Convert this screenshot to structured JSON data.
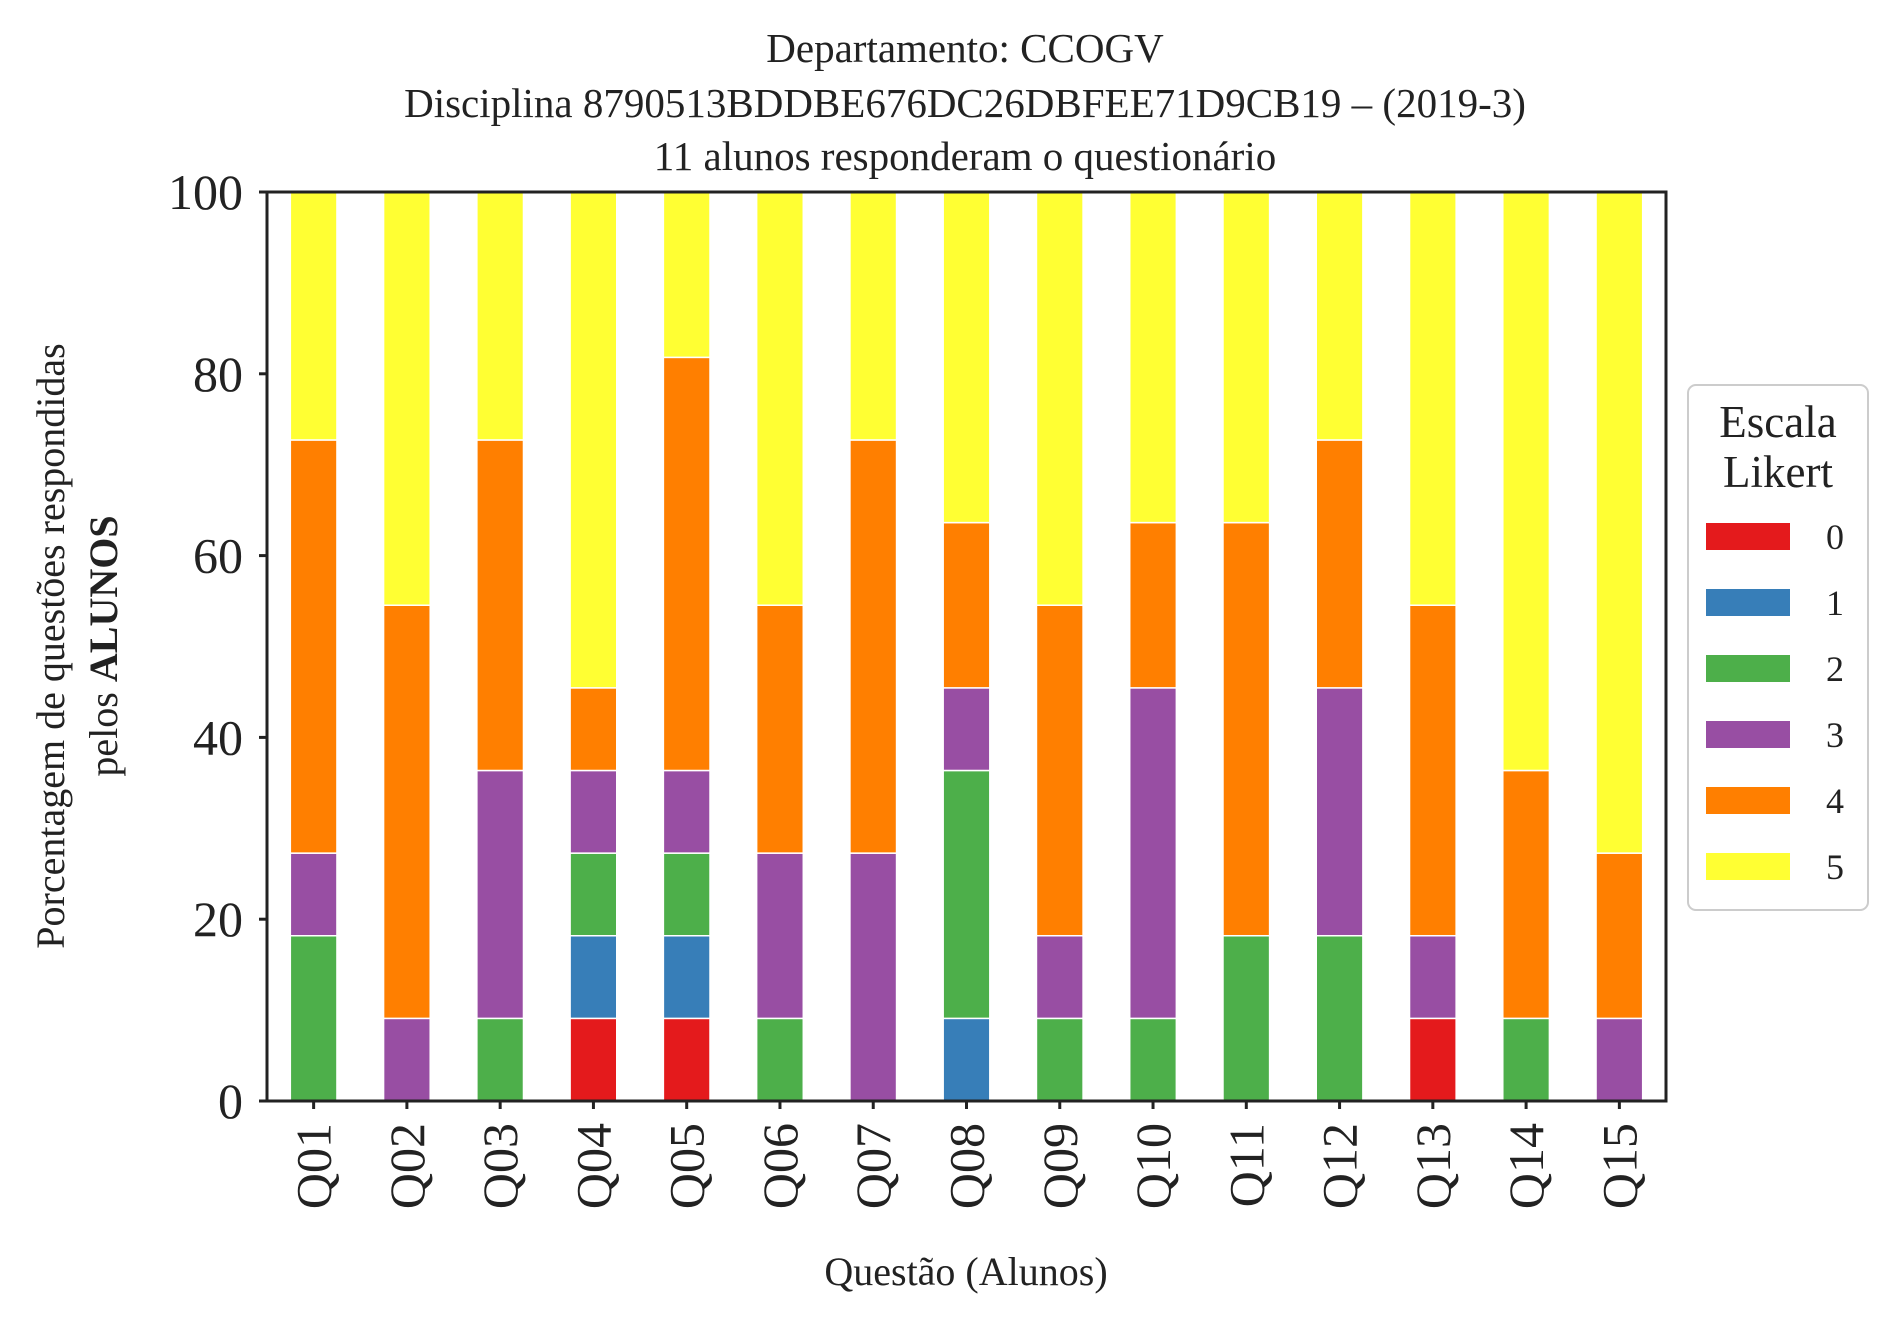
{
  "chart_data": {
    "type": "bar",
    "stacked": true,
    "title_lines": [
      "Departamento: CCOGV",
      "Disciplina 8790513BDDBE676DC26DBFEE71D9CB19 – (2019-3)",
      "11 alunos responderam o questionário"
    ],
    "xlabel": "Questão (Alunos)",
    "ylabel_line1": "Porcentagem de questões respondidas",
    "ylabel_line2_prefix": "pelos ",
    "ylabel_line2_bold": "ALUNOS",
    "ylim": [
      0,
      100
    ],
    "yticks": [
      "0",
      "20",
      "40",
      "60",
      "80",
      "100"
    ],
    "grid": false,
    "legend_position": "right",
    "legend_title_lines": [
      "Escala",
      "Likert"
    ],
    "categories": [
      "Q01",
      "Q02",
      "Q03",
      "Q04",
      "Q05",
      "Q06",
      "Q07",
      "Q08",
      "Q09",
      "Q10",
      "Q11",
      "Q12",
      "Q13",
      "Q14",
      "Q15"
    ],
    "series": [
      {
        "name": "0",
        "color": "#e41a1c",
        "values": [
          0,
          0,
          0,
          9.09,
          9.09,
          0,
          0,
          0,
          0,
          0,
          0,
          0,
          9.09,
          0,
          0
        ]
      },
      {
        "name": "1",
        "color": "#377eb8",
        "values": [
          0,
          0,
          0,
          9.09,
          9.09,
          0,
          0,
          9.09,
          0,
          0,
          0,
          0,
          0,
          0,
          0
        ]
      },
      {
        "name": "2",
        "color": "#4daf4a",
        "values": [
          18.18,
          0,
          9.09,
          9.09,
          9.09,
          9.09,
          0,
          27.27,
          9.09,
          9.09,
          18.18,
          18.18,
          0,
          9.09,
          0
        ]
      },
      {
        "name": "3",
        "color": "#984ea3",
        "values": [
          9.09,
          9.09,
          27.27,
          9.09,
          9.09,
          18.18,
          27.27,
          9.09,
          9.09,
          36.36,
          0,
          27.27,
          9.09,
          0,
          9.09
        ]
      },
      {
        "name": "4",
        "color": "#ff7f00",
        "values": [
          45.45,
          45.45,
          36.36,
          9.09,
          45.45,
          27.27,
          45.45,
          18.18,
          36.36,
          18.18,
          45.45,
          27.27,
          36.36,
          27.27,
          18.18
        ]
      },
      {
        "name": "5",
        "color": "#ffff33",
        "values": [
          27.27,
          45.45,
          27.27,
          54.55,
          18.18,
          45.45,
          27.27,
          36.36,
          45.45,
          36.36,
          36.36,
          27.27,
          45.45,
          63.64,
          72.73
        ]
      }
    ]
  }
}
